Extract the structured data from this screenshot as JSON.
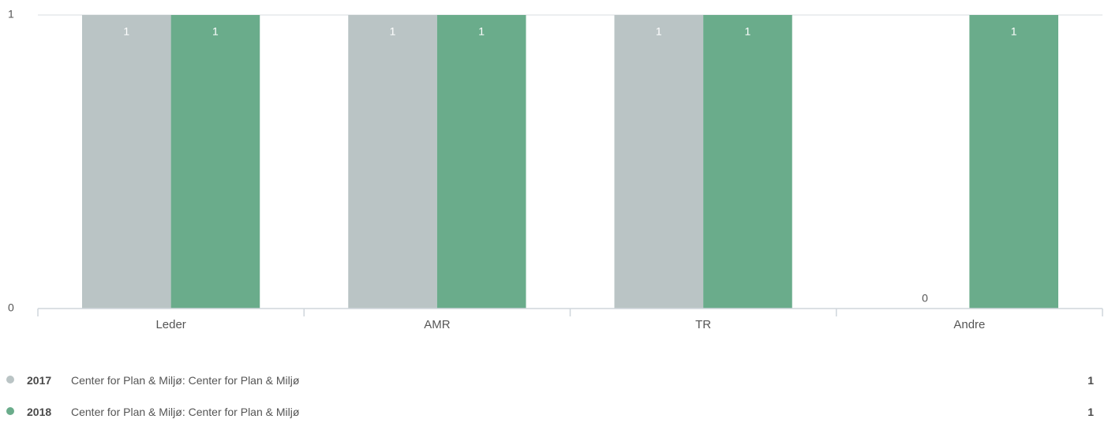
{
  "chart_data": {
    "type": "bar",
    "categories": [
      "Leder",
      "AMR",
      "TR",
      "Andre"
    ],
    "series": [
      {
        "name": "2017",
        "color": "#bac4c5",
        "values": [
          1,
          1,
          1,
          0
        ]
      },
      {
        "name": "2018",
        "color": "#6aac8b",
        "values": [
          1,
          1,
          1,
          1
        ]
      }
    ],
    "ylim": [
      0,
      1
    ],
    "yticks": [
      "0",
      "1"
    ],
    "grid": true,
    "legend_position": "bottom",
    "xlabel": "",
    "ylabel": "",
    "title": ""
  },
  "legend": {
    "items": [
      {
        "year": "2017",
        "desc": "Center for Plan & Miljø: Center for Plan & Miljø",
        "value": "1",
        "color": "#bac4c5"
      },
      {
        "year": "2018",
        "desc": "Center for Plan & Miljø: Center for Plan & Miljø",
        "value": "1",
        "color": "#6aac8b"
      }
    ]
  }
}
